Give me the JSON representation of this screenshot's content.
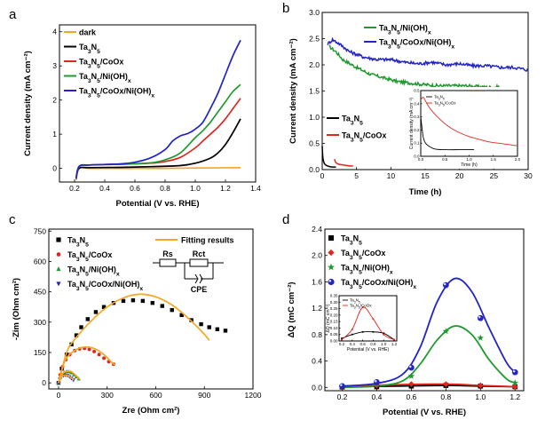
{
  "figure": {
    "panels": [
      {
        "id": "a",
        "letter": "a",
        "xlabel": "Potential (V vs. RHE)",
        "ylabel": "Current density (mA cm⁻²)",
        "xticks": [
          "0.2",
          "0.4",
          "0.6",
          "0.8",
          "1.0",
          "1.2",
          "1.4"
        ],
        "yticks": [
          "0",
          "1",
          "2",
          "3",
          "4"
        ]
      },
      {
        "id": "b",
        "letter": "b",
        "xlabel": "Time (h)",
        "ylabel": "Current density (mA cm⁻²)",
        "xticks": [
          "0",
          "5",
          "10",
          "15",
          "20",
          "25",
          "30"
        ],
        "yticks": [
          "0.0",
          "0.5",
          "1.0",
          "1.5",
          "2.0",
          "2.5",
          "3.0"
        ],
        "inset": {
          "xlabel": "Time (h)",
          "ylabel": "Current density (mA cm⁻²)",
          "xticks": [
            "0.0",
            "0.5",
            "1.0",
            "1.5",
            "2.0"
          ],
          "yticks": [
            "0.0",
            "0.1",
            "0.2",
            "0.3",
            "0.4",
            "0.5"
          ],
          "legend": [
            "Ta3N5",
            "Ta3N5/CoOx"
          ]
        }
      },
      {
        "id": "c",
        "letter": "c",
        "xlabel": "Zre (Ohm cm²)",
        "ylabel": "-Zim (Ohm cm²)",
        "xticks": [
          "0",
          "300",
          "600",
          "900",
          "1200"
        ],
        "yticks": [
          "0",
          "150",
          "300",
          "450",
          "600",
          "750"
        ],
        "fit_label": "Fitting results",
        "circuit": {
          "rs": "Rs",
          "rct": "Rct",
          "cpe": "CPE"
        }
      },
      {
        "id": "d",
        "letter": "d",
        "xlabel": "Potential (V vs. RHE)",
        "ylabel": "ΔQ (mC cm⁻²)",
        "xticks": [
          "0.2",
          "0.4",
          "0.6",
          "0.8",
          "1.0",
          "1.2"
        ],
        "yticks": [
          "0.0",
          "0.4",
          "0.8",
          "1.2",
          "1.6",
          "2.0",
          "2.4"
        ],
        "inset": {
          "xlabel": "Potential (V vs. RHE)",
          "ylabel": "ΔQ (mC cm⁻²)",
          "xticks": [
            "0.2",
            "0.4",
            "0.6",
            "0.8",
            "1.0",
            "1.2"
          ],
          "yticks": [
            "0.00",
            "0.05",
            "0.10",
            "0.15",
            "0.20",
            "0.25",
            "0.30",
            "0.35"
          ],
          "legend": [
            "Ta3N5",
            "Ta3N5/CoOx"
          ]
        }
      }
    ]
  },
  "chart_data": [
    {
      "panel": "a",
      "type": "line",
      "xlim": [
        0.1,
        1.4
      ],
      "ylim": [
        -0.4,
        4.2
      ],
      "legend_position": "top-left",
      "series": [
        {
          "name": "dark",
          "color": "#f5a623",
          "x": [
            0.21,
            0.23,
            0.3,
            0.5,
            0.8,
            1.0,
            1.3
          ],
          "y": [
            -0.35,
            0.0,
            0.0,
            0.0,
            0.0,
            0.01,
            0.02
          ]
        },
        {
          "name": "Ta3N5",
          "color": "#000000",
          "x": [
            0.21,
            0.23,
            0.3,
            0.5,
            0.7,
            0.9,
            1.0,
            1.1,
            1.15,
            1.2,
            1.25,
            1.3
          ],
          "y": [
            -0.3,
            0.0,
            0.02,
            0.03,
            0.05,
            0.08,
            0.15,
            0.3,
            0.45,
            0.7,
            1.05,
            1.45
          ]
        },
        {
          "name": "Ta3N5/CoOx",
          "color": "#e0261f",
          "x": [
            0.21,
            0.23,
            0.3,
            0.5,
            0.7,
            0.8,
            0.9,
            1.0,
            1.05,
            1.1,
            1.15,
            1.2,
            1.25,
            1.3
          ],
          "y": [
            -0.3,
            0.05,
            0.1,
            0.12,
            0.15,
            0.2,
            0.32,
            0.6,
            0.8,
            1.0,
            1.2,
            1.45,
            1.75,
            2.05
          ]
        },
        {
          "name": "Ta3N5/Ni(OH)x",
          "color": "#1f9a2f",
          "x": [
            0.21,
            0.23,
            0.3,
            0.5,
            0.7,
            0.8,
            0.9,
            1.0,
            1.05,
            1.1,
            1.15,
            1.2,
            1.25,
            1.3
          ],
          "y": [
            -0.3,
            0.05,
            0.1,
            0.12,
            0.16,
            0.25,
            0.45,
            0.9,
            1.1,
            1.35,
            1.65,
            1.95,
            2.25,
            2.45
          ]
        },
        {
          "name": "Ta3N5/CoOx/Ni(OH)x",
          "color": "#2323c8",
          "x": [
            0.21,
            0.23,
            0.3,
            0.5,
            0.6,
            0.7,
            0.8,
            0.85,
            0.9,
            0.95,
            1.0,
            1.05,
            1.1,
            1.15,
            1.2,
            1.25,
            1.3
          ],
          "y": [
            -0.3,
            0.06,
            0.1,
            0.13,
            0.18,
            0.3,
            0.55,
            0.8,
            0.95,
            1.02,
            1.15,
            1.35,
            1.75,
            2.2,
            2.75,
            3.3,
            3.75
          ]
        }
      ]
    },
    {
      "panel": "b",
      "type": "line",
      "xlim": [
        0,
        30
      ],
      "ylim": [
        0,
        3.0
      ],
      "legend_position": "top-center and middle-left",
      "series": [
        {
          "name": "Ta3N5/Ni(OH)x",
          "color": "#1f9a2f",
          "x": [
            1,
            2,
            3,
            5,
            7,
            9,
            11,
            13,
            15,
            17,
            19,
            21,
            23,
            25,
            25.8
          ],
          "y": [
            2.35,
            2.25,
            2.1,
            1.95,
            1.82,
            1.75,
            1.68,
            1.65,
            1.62,
            1.6,
            1.6,
            1.6,
            1.58,
            1.57,
            1.58
          ]
        },
        {
          "name": "Ta3N5/CoOx/Ni(OH)x",
          "color": "#2323c8",
          "x": [
            0.8,
            1.5,
            2.5,
            4,
            6,
            8,
            10,
            12,
            14,
            16,
            18,
            20,
            22,
            24,
            26,
            28,
            30
          ],
          "y": [
            2.4,
            2.48,
            2.4,
            2.25,
            2.15,
            2.1,
            2.1,
            2.05,
            2.02,
            2.05,
            2.0,
            2.02,
            1.98,
            1.98,
            1.95,
            1.95,
            1.9
          ]
        },
        {
          "name": "Ta3N5",
          "color": "#000000",
          "x": [
            0.0,
            0.1,
            0.3,
            0.6,
            1.0,
            1.5,
            2.0
          ],
          "y": [
            0.45,
            0.22,
            0.12,
            0.08,
            0.06,
            0.05,
            0.05
          ]
        },
        {
          "name": "Ta3N5/CoOx",
          "color": "#e0261f",
          "x": [
            1.8,
            2.0,
            2.5,
            3.0,
            3.5,
            4.0,
            4.5
          ],
          "y": [
            0.2,
            0.13,
            0.1,
            0.09,
            0.08,
            0.07,
            0.07
          ]
        }
      ],
      "inset": {
        "xlim": [
          0,
          2.0
        ],
        "ylim": [
          0,
          0.5
        ],
        "series": [
          {
            "name": "Ta3N5",
            "color": "#000000",
            "x": [
              0.0,
              0.05,
              0.1,
              0.2,
              0.3,
              0.5,
              0.8,
              1.1
            ],
            "y": [
              0.3,
              0.15,
              0.1,
              0.07,
              0.055,
              0.05,
              0.05,
              0.05
            ]
          },
          {
            "name": "Ta3N5/CoOx",
            "color": "#e0261f",
            "x": [
              0.0,
              0.05,
              0.1,
              0.2,
              0.4,
              0.6,
              0.8,
              1.0,
              1.2,
              1.4,
              1.6,
              1.8,
              2.0
            ],
            "y": [
              0.43,
              0.45,
              0.42,
              0.36,
              0.28,
              0.22,
              0.18,
              0.15,
              0.13,
              0.11,
              0.1,
              0.09,
              0.08
            ]
          }
        ]
      }
    },
    {
      "panel": "c",
      "type": "scatter",
      "xlim": [
        -60,
        1200
      ],
      "ylim": [
        -30,
        760
      ],
      "legend_position": "top-left",
      "series": [
        {
          "name": "Ta3N5",
          "color": "#000000",
          "marker": "square",
          "x": [
            0,
            20,
            50,
            80,
            110,
            140,
            180,
            230,
            280,
            340,
            400,
            460,
            520,
            580,
            640,
            700,
            760,
            820,
            880,
            930,
            980,
            1030
          ],
          "y": [
            0,
            70,
            140,
            190,
            235,
            275,
            315,
            350,
            375,
            395,
            405,
            408,
            405,
            395,
            380,
            360,
            335,
            310,
            290,
            275,
            265,
            258
          ]
        },
        {
          "name": "Ta3N5/CoOx",
          "color": "#e0261f",
          "marker": "circle",
          "x": [
            0,
            10,
            25,
            45,
            70,
            100,
            130,
            160,
            190,
            220,
            250,
            280,
            310,
            340
          ],
          "y": [
            0,
            40,
            80,
            115,
            140,
            160,
            168,
            170,
            166,
            155,
            140,
            122,
            105,
            92
          ]
        },
        {
          "name": "Ta3N5/Ni(OH)x",
          "color": "#1f9a2f",
          "marker": "triangle",
          "x": [
            0,
            10,
            20,
            35,
            50,
            65,
            80,
            95,
            110,
            125
          ],
          "y": [
            0,
            25,
            42,
            52,
            56,
            55,
            50,
            40,
            30,
            20
          ]
        },
        {
          "name": "Ta3N5/CoOx/Ni(OH)x",
          "color": "#2323c8",
          "marker": "triangle-down",
          "x": [
            0,
            8,
            18,
            30,
            42,
            55,
            68,
            80,
            92
          ],
          "y": [
            0,
            18,
            30,
            36,
            38,
            36,
            30,
            22,
            14
          ]
        }
      ],
      "fits": [
        {
          "color": "#f5a623",
          "x": [
            0,
            50,
            100,
            200,
            300,
            400,
            500,
            600,
            700,
            800,
            900,
            930
          ],
          "y": [
            0,
            150,
            215,
            305,
            375,
            420,
            438,
            425,
            385,
            320,
            240,
            210
          ]
        },
        {
          "color": "#f5a623",
          "x": [
            0,
            40,
            100,
            160,
            220,
            280,
            330,
            350
          ],
          "y": [
            0,
            110,
            160,
            177,
            170,
            140,
            100,
            88
          ]
        },
        {
          "color": "#f5a623",
          "x": [
            0,
            25,
            55,
            85,
            115,
            130
          ],
          "y": [
            0,
            45,
            58,
            52,
            30,
            18
          ]
        },
        {
          "color": "#f5a623",
          "x": [
            0,
            20,
            45,
            70,
            95
          ],
          "y": [
            0,
            30,
            39,
            30,
            14
          ]
        }
      ]
    },
    {
      "panel": "d",
      "type": "scatter",
      "xlim": [
        0.1,
        1.25
      ],
      "ylim": [
        -0.05,
        2.4
      ],
      "legend_position": "top-left",
      "series": [
        {
          "name": "Ta3N5",
          "color": "#000000",
          "marker": "square",
          "x": [
            0.2,
            0.4,
            0.6,
            0.8,
            1.0,
            1.2
          ],
          "y": [
            0.005,
            0.01,
            0.02,
            0.03,
            0.02,
            0.01
          ]
        },
        {
          "name": "Ta3N5/CoOx",
          "color": "#e0261f",
          "marker": "diamond",
          "x": [
            0.2,
            0.4,
            0.6,
            0.8,
            1.0,
            1.2
          ],
          "y": [
            0.01,
            0.03,
            0.05,
            0.05,
            0.03,
            0.01
          ]
        },
        {
          "name": "Ta3N5/Ni(OH)x",
          "color": "#1f9a2f",
          "marker": "star",
          "x": [
            0.2,
            0.4,
            0.6,
            0.8,
            1.0,
            1.2
          ],
          "y": [
            0.01,
            0.05,
            0.17,
            0.85,
            0.75,
            0.07
          ]
        },
        {
          "name": "Ta3N5/CoOx/Ni(OH)x",
          "color": "#2323c8",
          "marker": "ball",
          "x": [
            0.2,
            0.4,
            0.6,
            0.8,
            1.0,
            1.2
          ],
          "y": [
            0.02,
            0.08,
            0.3,
            1.55,
            1.05,
            0.23
          ]
        }
      ],
      "fits": [
        {
          "color": "#000000",
          "x": [
            0.2,
            0.5,
            0.8,
            1.0,
            1.2
          ],
          "y": [
            0.01,
            0.02,
            0.03,
            0.02,
            0.01
          ]
        },
        {
          "color": "#e0261f",
          "x": [
            0.2,
            0.5,
            0.8,
            1.0,
            1.2
          ],
          "y": [
            0.01,
            0.04,
            0.05,
            0.03,
            0.01
          ]
        },
        {
          "color": "#1f9a2f",
          "x": [
            0.2,
            0.4,
            0.55,
            0.65,
            0.75,
            0.85,
            0.95,
            1.05,
            1.15,
            1.2
          ],
          "y": [
            0.0,
            0.02,
            0.1,
            0.35,
            0.72,
            0.93,
            0.8,
            0.42,
            0.13,
            0.07
          ]
        },
        {
          "color": "#2323c8",
          "x": [
            0.2,
            0.4,
            0.55,
            0.65,
            0.75,
            0.85,
            0.95,
            1.05,
            1.15,
            1.2
          ],
          "y": [
            0.02,
            0.06,
            0.2,
            0.6,
            1.3,
            1.65,
            1.45,
            0.9,
            0.38,
            0.23
          ]
        }
      ],
      "inset": {
        "xlim": [
          0.15,
          1.25
        ],
        "ylim": [
          0,
          0.35
        ],
        "series": [
          {
            "name": "Ta3N5",
            "color": "#000000",
            "x": [
              0.2,
              0.4,
              0.6,
              0.8,
              1.0,
              1.2
            ],
            "y": [
              0.02,
              0.05,
              0.07,
              0.07,
              0.06,
              0.01
            ]
          },
          {
            "name": "Ta3N5/CoOx",
            "color": "#e0261f",
            "x": [
              0.2,
              0.4,
              0.6,
              0.8,
              1.0,
              1.2
            ],
            "y": [
              0.01,
              0.09,
              0.26,
              0.17,
              0.05,
              0.01
            ]
          }
        ]
      }
    }
  ]
}
